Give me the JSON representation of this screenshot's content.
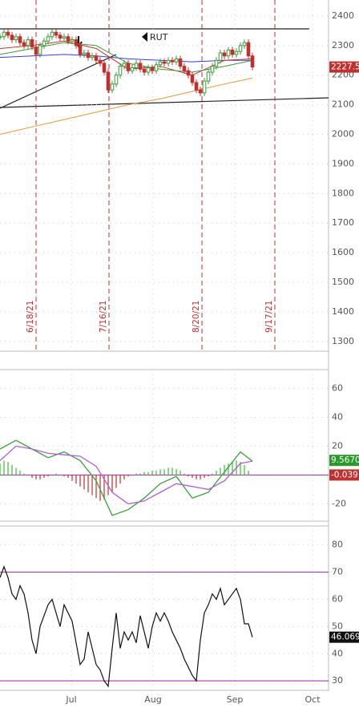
{
  "chart_data": [
    {
      "type": "candlestick",
      "annotation": "RUT",
      "ylim": [
        1267,
        2454
      ],
      "yticks": [
        1300,
        1400,
        1500,
        1600,
        1700,
        1800,
        1900,
        2000,
        2100,
        2200,
        2300,
        2400
      ],
      "close": [
        2330,
        2345,
        2335,
        2320,
        2330,
        2310,
        2300,
        2320,
        2295,
        2270,
        2300,
        2315,
        2330,
        2345,
        2335,
        2325,
        2330,
        2315,
        2320,
        2300,
        2270,
        2275,
        2260,
        2265,
        2250,
        2240,
        2210,
        2150,
        2170,
        2200,
        2230,
        2240,
        2215,
        2225,
        2240,
        2220,
        2210,
        2225,
        2215,
        2235,
        2245,
        2240,
        2250,
        2245,
        2255,
        2230,
        2215,
        2200,
        2175,
        2150,
        2140,
        2180,
        2210,
        2230,
        2250,
        2275,
        2265,
        2285,
        2270,
        2280,
        2300,
        2310,
        2265,
        2227.5
      ],
      "up_color": "#3a9a3a",
      "down_color": "#c0302f",
      "overlays": [
        {
          "color": "#3b3bd6",
          "x": [
            0,
            8,
            16,
            24,
            32,
            40,
            48,
            56,
            63
          ],
          "values": [
            2260,
            2265,
            2270,
            2265,
            2255,
            2250,
            2245,
            2250,
            2250
          ]
        },
        {
          "color": "#d03030",
          "x": [
            0,
            8,
            16,
            24,
            32,
            40,
            48,
            56,
            63
          ],
          "values": [
            2290,
            2300,
            2315,
            2290,
            2220,
            2230,
            2200,
            2250,
            2255
          ]
        },
        {
          "color": "#3a9a3a",
          "x": [
            0,
            8,
            16,
            24,
            32,
            40,
            48,
            56,
            63
          ],
          "values": [
            2270,
            2290,
            2310,
            2300,
            2240,
            2220,
            2210,
            2230,
            2250
          ]
        },
        {
          "color": "#d99a3a",
          "x": [
            0,
            8,
            16,
            24,
            32,
            40,
            48,
            56,
            63
          ],
          "values": [
            2000,
            2025,
            2050,
            2075,
            2100,
            2120,
            2145,
            2170,
            2190
          ]
        }
      ],
      "events": [
        {
          "x": 9,
          "label": "6/18/21"
        },
        {
          "x": 27.2,
          "label": "7/16/21"
        },
        {
          "x": 50.4,
          "label": "8/20/21"
        },
        {
          "x": 68.6,
          "label": "9/17/21"
        }
      ]
    },
    {
      "type": "macd",
      "ylim": [
        -32,
        73
      ],
      "yticks": [
        -20,
        20,
        40,
        60
      ],
      "histogram": {
        "color_up": "#3aba3a",
        "color_down": "#c0302f",
        "values": [
          8,
          10,
          9,
          7,
          5,
          3,
          1,
          0,
          -2,
          -3,
          -3,
          -2,
          -1,
          0,
          1,
          0,
          -1,
          -2,
          -4,
          -6,
          -8,
          -10,
          -12,
          -14,
          -16,
          -18,
          -17,
          -14,
          -12,
          -9,
          -6,
          -3,
          -1,
          0,
          1,
          1,
          2,
          2,
          3,
          3,
          4,
          4,
          5,
          5,
          4,
          3,
          1,
          -1,
          -2,
          -3,
          -3,
          -2,
          -1,
          1,
          3,
          5,
          7,
          8,
          9,
          10,
          9,
          7,
          3,
          -0.039
        ]
      },
      "zero_color": "#a020a0",
      "series": [
        {
          "color": "#3aa03a",
          "x": [
            0,
            4,
            8,
            12,
            16,
            20,
            24,
            28,
            32,
            36,
            40,
            44,
            48,
            52,
            56,
            60,
            63
          ],
          "values": [
            18,
            24,
            18,
            12,
            16,
            10,
            -4,
            -28,
            -24,
            -16,
            -6,
            -1,
            -16,
            -12,
            2,
            16,
            9.567
          ],
          "value_labels": [
            null,
            null,
            null,
            null,
            null,
            null,
            null,
            null,
            null,
            null,
            null,
            null,
            null,
            null,
            null,
            null,
            "9.5670"
          ]
        },
        {
          "color": "#b060d0",
          "x": [
            0,
            4,
            8,
            12,
            16,
            20,
            24,
            28,
            32,
            36,
            40,
            44,
            48,
            52,
            56,
            60,
            63
          ],
          "values": [
            10,
            20,
            18,
            15,
            14,
            13,
            6,
            -12,
            -20,
            -18,
            -12,
            -6,
            -8,
            -10,
            -4,
            8,
            9.6
          ]
        }
      ]
    },
    {
      "type": "line",
      "ylim": [
        26.5,
        87
      ],
      "yticks": [
        30,
        40,
        50,
        60,
        70,
        80
      ],
      "levels": [
        70,
        30
      ],
      "level_color": "#a020a0",
      "color": "#111",
      "values": [
        68,
        72,
        68,
        62,
        60,
        65,
        62,
        55,
        45,
        40,
        50,
        54,
        58,
        60,
        55,
        50,
        58,
        55,
        52,
        44,
        36,
        38,
        48,
        42,
        36,
        34,
        30,
        28,
        42,
        55,
        42,
        48,
        45,
        48,
        44,
        54,
        48,
        42,
        50,
        55,
        52,
        55,
        52,
        48,
        45,
        42,
        38,
        35,
        32,
        30,
        45,
        55,
        58,
        62,
        60,
        64,
        58,
        60,
        62,
        64,
        60,
        51,
        51,
        46.069
      ],
      "xlim": [
        0,
        82
      ],
      "xticks": [
        {
          "value": 17.8,
          "label": "Jul"
        },
        {
          "value": 38.2,
          "label": "Aug"
        },
        {
          "value": 58.6,
          "label": "Sep"
        },
        {
          "value": 78,
          "label": "Oct"
        }
      ]
    }
  ]
}
